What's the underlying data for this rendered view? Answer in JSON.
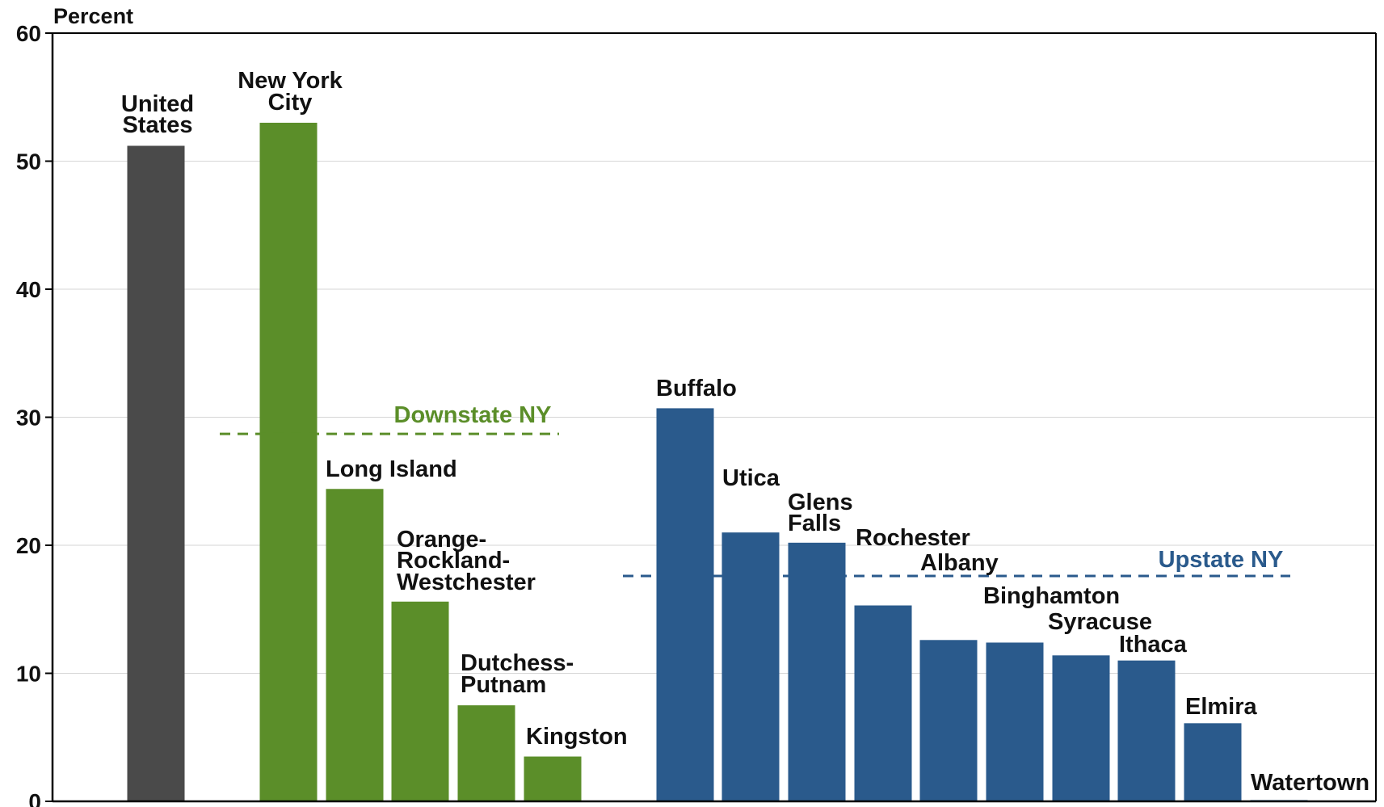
{
  "chart_data": {
    "type": "bar",
    "ylabel": "Percent",
    "ylim": [
      0,
      60
    ],
    "yticks": [
      "0",
      "10",
      "20",
      "30",
      "40",
      "50",
      "60"
    ],
    "grid": true,
    "bars": [
      {
        "label": [
          "United",
          "States"
        ],
        "value": 51.2,
        "group": "us"
      },
      {
        "label": [
          "New York",
          "City"
        ],
        "value": 53.0,
        "group": "downstate"
      },
      {
        "label": [
          "Long Island"
        ],
        "value": 24.4,
        "group": "downstate"
      },
      {
        "label": [
          "Orange-",
          "Rockland-",
          "Westchester"
        ],
        "value": 15.6,
        "group": "downstate"
      },
      {
        "label": [
          "Dutchess-",
          "Putnam"
        ],
        "value": 7.5,
        "group": "downstate"
      },
      {
        "label": [
          "Kingston"
        ],
        "value": 3.5,
        "group": "downstate"
      },
      {
        "label": [
          "Buffalo"
        ],
        "value": 30.7,
        "group": "upstate"
      },
      {
        "label": [
          "Utica"
        ],
        "value": 21.0,
        "group": "upstate"
      },
      {
        "label": [
          "Glens",
          "Falls"
        ],
        "value": 20.2,
        "group": "upstate"
      },
      {
        "label": [
          "Rochester"
        ],
        "value": 15.3,
        "group": "upstate"
      },
      {
        "label": [
          "Albany"
        ],
        "value": 12.6,
        "group": "upstate"
      },
      {
        "label": [
          "Binghamton"
        ],
        "value": 12.4,
        "group": "upstate"
      },
      {
        "label": [
          "Syracuse"
        ],
        "value": 11.4,
        "group": "upstate"
      },
      {
        "label": [
          "Ithaca"
        ],
        "value": 11.0,
        "group": "upstate"
      },
      {
        "label": [
          "Elmira"
        ],
        "value": 6.1,
        "group": "upstate"
      },
      {
        "label": [
          "Watertown"
        ],
        "value": 0.1,
        "group": "upstate"
      }
    ],
    "averages": [
      {
        "name": "Downstate NY",
        "value": 28.7,
        "group": "downstate"
      },
      {
        "name": "Upstate NY",
        "value": 17.6,
        "group": "upstate"
      }
    ],
    "colors": {
      "us": "#4a4a4a",
      "downstate": "#5b8e29",
      "upstate": "#2a5a8c"
    }
  }
}
